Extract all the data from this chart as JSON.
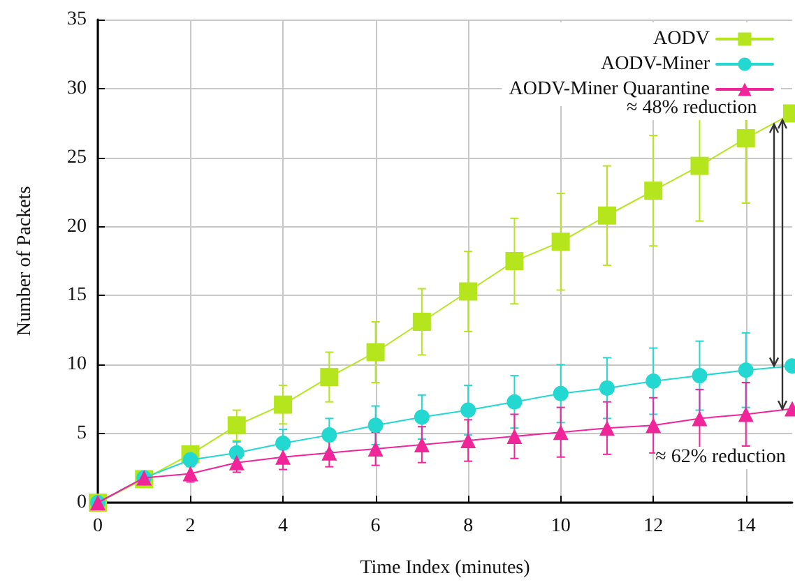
{
  "chart_data": {
    "type": "line",
    "xlabel": "Time Index (minutes)",
    "ylabel": "Number of Packets",
    "x": [
      0,
      1,
      2,
      3,
      4,
      5,
      6,
      7,
      8,
      9,
      10,
      11,
      12,
      13,
      14,
      15
    ],
    "series": [
      {
        "name": "AODV",
        "color": "#b5e61d",
        "marker": "square",
        "values": [
          0,
          1.7,
          3.5,
          5.6,
          7.1,
          9.1,
          10.9,
          13.1,
          15.3,
          17.5,
          18.9,
          20.8,
          22.6,
          24.4,
          26.4,
          28.2
        ],
        "errors": [
          null,
          0.3,
          0.6,
          1.1,
          1.4,
          1.8,
          2.2,
          2.4,
          2.9,
          3.1,
          3.5,
          3.6,
          4,
          4,
          4.7,
          null
        ]
      },
      {
        "name": "AODV-Miner",
        "color": "#22d8d0",
        "marker": "circle",
        "values": [
          0,
          1.8,
          3.1,
          3.6,
          4.3,
          4.9,
          5.6,
          6.2,
          6.7,
          7.3,
          7.9,
          8.3,
          8.8,
          9.2,
          9.6,
          9.9
        ],
        "errors": [
          null,
          0.3,
          0.5,
          0.8,
          1,
          1.2,
          1.4,
          1.6,
          1.8,
          1.9,
          2.1,
          2.2,
          2.4,
          2.5,
          2.7,
          null
        ]
      },
      {
        "name": "AODV-Miner Quarantine",
        "color": "#f0259a",
        "marker": "triangle",
        "values": [
          0,
          1.8,
          2.1,
          2.9,
          3.3,
          3.6,
          3.9,
          4.2,
          4.5,
          4.8,
          5.1,
          5.4,
          5.6,
          6.1,
          6.4,
          6.8
        ],
        "errors": [
          null,
          0.3,
          0.6,
          0.7,
          0.9,
          1,
          1.2,
          1.3,
          1.5,
          1.6,
          1.8,
          1.9,
          2,
          2.1,
          2.3,
          null
        ]
      }
    ],
    "xlim": [
      0,
      15
    ],
    "ylim": [
      0,
      35
    ],
    "xticks": [
      0,
      2,
      4,
      6,
      8,
      10,
      12,
      14
    ],
    "yticks": [
      0,
      5,
      10,
      15,
      20,
      25,
      30,
      35
    ],
    "grid": true,
    "legend": "top right",
    "line_style": "solid",
    "annotations": [
      {
        "text": "≈ 48% reduction",
        "x": 14.6,
        "y": 27.5
      },
      {
        "text": "≈ 62% reduction",
        "x": 14.8,
        "y": 6.7
      }
    ]
  }
}
